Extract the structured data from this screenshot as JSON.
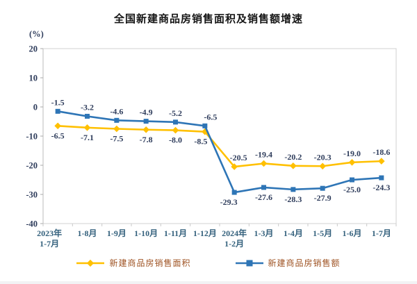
{
  "title": "全国新建商品房销售面积及销售额增速",
  "y_axis": {
    "unit": "(%)",
    "ticks": [
      20,
      10,
      0,
      -10,
      -20,
      -30,
      -40
    ]
  },
  "legend": {
    "items": [
      {
        "label": "新建商品房销售面积",
        "color": "#FFC000",
        "marker": "diamond"
      },
      {
        "label": "新建商品房销售额",
        "color": "#2E75B6",
        "marker": "square"
      }
    ]
  },
  "colors": {
    "series_area": "#FFC000",
    "series_amount": "#2E75B6",
    "axis_text": "#2F3D5C",
    "x_axis_text": "#33607C",
    "legend_text": "#9E5222",
    "plot_border": "#D2D2D2"
  },
  "chart_data": {
    "type": "line",
    "title": "全国新建商品房销售面积及销售额增速",
    "xlabel": "",
    "ylabel": "(%)",
    "ylim": [
      -40,
      20
    ],
    "grid": false,
    "legend_position": "bottom",
    "categories": [
      "2023年\n1-7月",
      "1-8月",
      "1-9月",
      "1-10月",
      "1-11月",
      "1-12月",
      "2024年\n1-2月",
      "1-3月",
      "1-4月",
      "1-5月",
      "1-6月",
      "1-7月"
    ],
    "series": [
      {
        "name": "新建商品房销售面积",
        "color": "#FFC000",
        "marker": "diamond",
        "values": [
          -6.5,
          -7.1,
          -7.5,
          -7.8,
          -8.0,
          -8.5,
          -20.5,
          -19.4,
          -20.2,
          -20.3,
          -19.0,
          -18.6
        ],
        "label_side": [
          "below",
          "below",
          "below",
          "below",
          "below",
          "below",
          "above",
          "above",
          "above",
          "above",
          "above",
          "above"
        ]
      },
      {
        "name": "新建商品房销售额",
        "color": "#2E75B6",
        "marker": "square",
        "values": [
          -1.5,
          -3.2,
          -4.6,
          -4.9,
          -5.2,
          -6.5,
          -29.3,
          -27.6,
          -28.3,
          -27.9,
          -25.0,
          -24.3
        ],
        "label_side": [
          "above",
          "above",
          "above",
          "above",
          "above",
          "above",
          "below",
          "below",
          "below",
          "below",
          "below",
          "below"
        ]
      }
    ]
  }
}
